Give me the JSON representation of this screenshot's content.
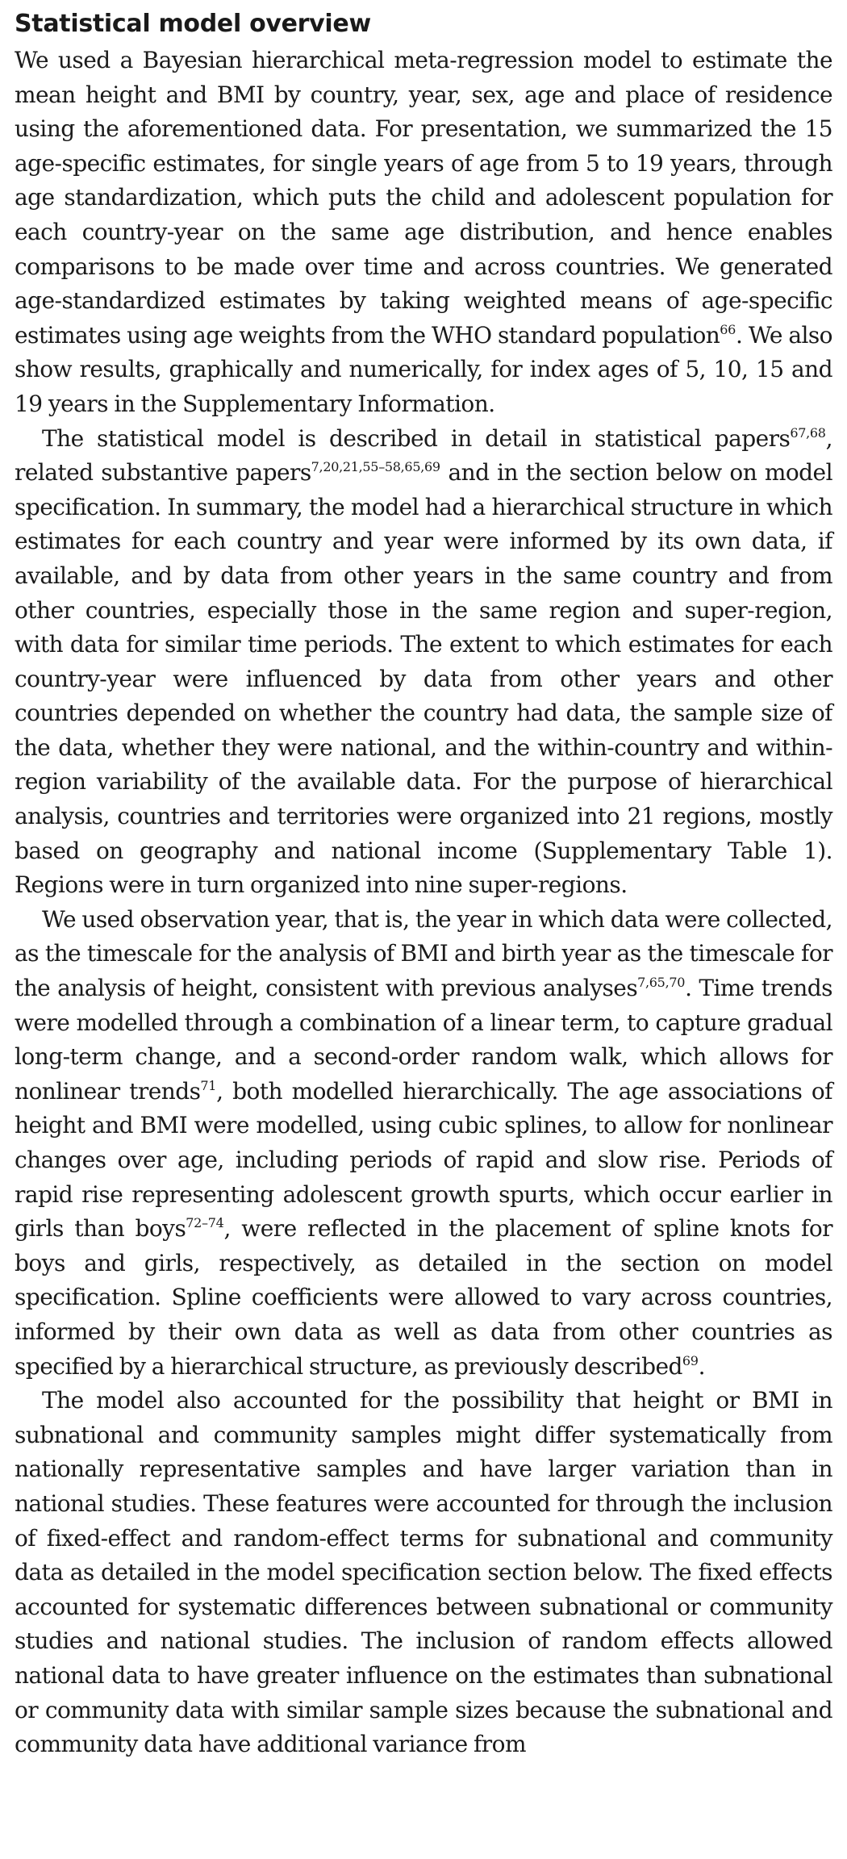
{
  "section": {
    "title": "Statistical model overview",
    "paragraphs": [
      [
        {
          "t": "We used a Bayesian hierarchical meta-regression model to estimate the mean height and BMI by country, year, sex, age and place of residence using the aforementioned data. For presentation, we summarized the 15 age-specific estimates, for single years of age from 5 to 19 years, through age standardization, which puts the child and adolescent population for each country-year on the same age distribution, and hence enables comparisons to be made over time and across countries. We generated age-standardized estimates by taking weighted means of age-specific estimates using age weights from the WHO standard population"
        },
        {
          "sup": "66"
        },
        {
          "t": ". We also show results, graphically and numerically, for index ages of 5, 10, 15 and 19 years in the Supplementary Information."
        }
      ],
      [
        {
          "t": "The statistical model is described in detail in statistical papers"
        },
        {
          "sup": "67,68"
        },
        {
          "t": ", related substantive papers"
        },
        {
          "sup": "7,20,21,55–58,65,69"
        },
        {
          "t": " and in the section below on model specification. In summary, the model had a hierarchical struc­ture in which estimates for each country and year were informed by its own data, if available, and by data from other years in the same country and from other countries, especially those in the same region and super-region, with data for similar time periods. The extent to which estimates for each country-year were influenced by data from other years and other countries depended on whether the country had data, the sample size of the data, whether they were national, and the within-country and within-region variability of the available data. For the purpose of hierarchical analysis, countries and territories were organized into 21 regions, mostly based on geography and national income (Supplementary Table 1). Regions were in turn organized into nine super-regions."
        }
      ],
      [
        {
          "t": "We used observation year, that is, the year in which data were col­lected, as the timescale for the analysis of BMI and birth year as the time­scale for the analysis of height, consistent with previous analyses"
        },
        {
          "sup": "7,65,70"
        },
        {
          "t": ". Time trends were modelled through a combination of a linear term, to capture gradual long-term change, and a second-order random walk, which allows for nonlinear trends"
        },
        {
          "sup": "71"
        },
        {
          "t": ", both modelled hierarchically. The age associations of height and BMI were modelled, using cubic splines, to allow for nonlinear changes over age, including periods of rapid and slow rise. Periods of rapid rise representing adolescent growth spurts, which occur earlier in girls than boys"
        },
        {
          "sup": "72–74"
        },
        {
          "t": ", were reflected in the place­ment of spline knots for boys and girls, respectively, as detailed in the section on model specification. Spline coefficients were allowed to vary across countries, informed by their own data as well as data from other countries as specified by a hierarchical structure, as previously described"
        },
        {
          "sup": "69"
        },
        {
          "t": "."
        }
      ],
      [
        {
          "t": "The model also accounted for the possibility that height or BMI in subnational and community samples might differ systematically from nationally representative samples and have larger variation than in national studies. These features were accounted for through the inclu­sion of fixed-effect and random-effect terms for subnational and com­munity data as detailed in the model specification section below. The fixed effects accounted for systematic differences between subnational or community studies and national studies. The inclusion of random effects allowed national data to have greater influence on the estimates than subnational or community data with similar sample sizes because the subnational and community data have additional variance from"
        }
      ]
    ]
  }
}
